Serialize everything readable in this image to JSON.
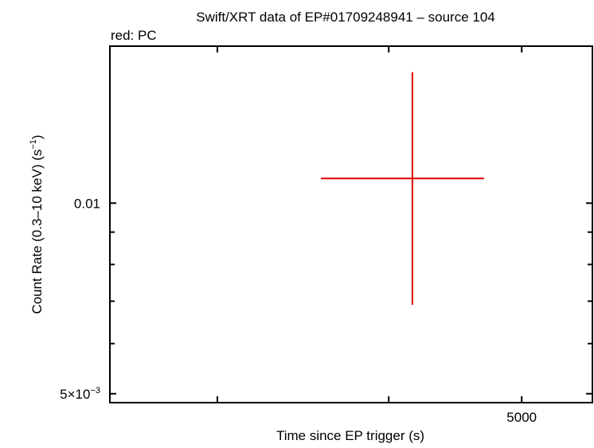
{
  "chart_data": {
    "type": "scatter",
    "title": "Swift/XRT data of EP#01709248941 – source 104",
    "subtitle": "red: PC",
    "xlabel": "Time since EP trigger (s)",
    "ylabel": "Count Rate (0.3–10 keV) (s",
    "ylabel_sup": "−1",
    "ylabel_end": ")",
    "xscale": "log",
    "yscale": "log",
    "xlim": [
      2505,
      5630
    ],
    "ylim": [
      0.00484,
      0.0177
    ],
    "x_ticks": [
      3000,
      4000,
      5000
    ],
    "x_tick_labels": [
      {
        "value": 5000,
        "text": "5000"
      }
    ],
    "y_ticks": [
      0.006,
      0.007,
      0.008,
      0.009,
      0.01
    ],
    "y_major_ticks": [
      0.005,
      0.01
    ],
    "y_tick_labels": [
      {
        "value": 0.01,
        "text": "0.01"
      },
      {
        "value": 0.005,
        "base": "5×10",
        "exp": "−3"
      }
    ],
    "grid": false,
    "series": [
      {
        "name": "PC",
        "color": "#e00000",
        "points": [
          {
            "x": 4162,
            "x_lo": 3570,
            "x_hi": 4693,
            "y": 0.01094,
            "y_lo": 0.00691,
            "y_hi": 0.0161
          }
        ]
      }
    ]
  }
}
